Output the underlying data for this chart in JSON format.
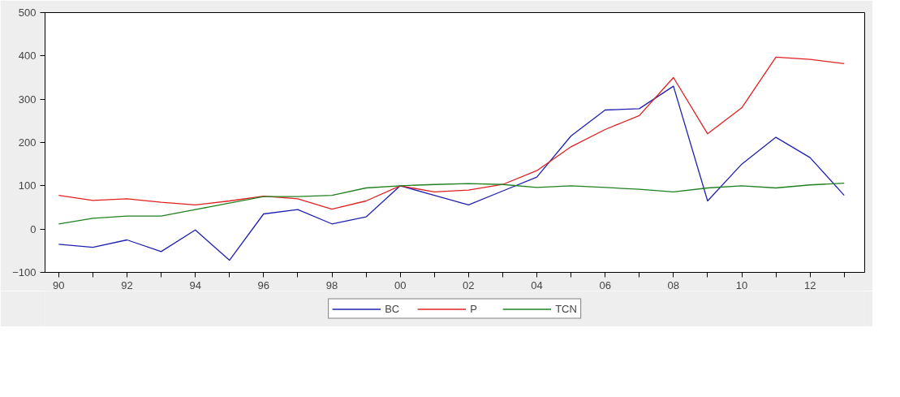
{
  "chart_data": {
    "type": "line",
    "x": [
      1990,
      1991,
      1992,
      1993,
      1994,
      1995,
      1996,
      1997,
      1998,
      1999,
      2000,
      2001,
      2002,
      2003,
      2004,
      2005,
      2006,
      2007,
      2008,
      2009,
      2010,
      2011,
      2012,
      2013
    ],
    "series": [
      {
        "name": "BC",
        "color": "#2020b0",
        "values": [
          -35,
          -42,
          -25,
          -52,
          -2,
          -72,
          35,
          45,
          12,
          28,
          100,
          78,
          56,
          88,
          120,
          215,
          275,
          278,
          330,
          65,
          150,
          212,
          165,
          78
        ]
      },
      {
        "name": "P",
        "color": "#e02020",
        "values": [
          78,
          66,
          70,
          62,
          56,
          65,
          76,
          70,
          46,
          65,
          100,
          86,
          90,
          103,
          135,
          190,
          230,
          262,
          350,
          220,
          280,
          397,
          392,
          382
        ]
      },
      {
        "name": "TCN",
        "color": "#208020",
        "values": [
          12,
          25,
          30,
          30,
          45,
          60,
          75,
          75,
          78,
          95,
          100,
          103,
          105,
          103,
          96,
          100,
          96,
          92,
          86,
          95,
          100,
          95,
          102,
          106
        ]
      }
    ],
    "xlim": [
      1989.6,
      2013.6
    ],
    "xticks": [
      {
        "value": 1990,
        "label": "90"
      },
      {
        "value": 1991,
        "label": null
      },
      {
        "value": 1992,
        "label": "92"
      },
      {
        "value": 1993,
        "label": null
      },
      {
        "value": 1994,
        "label": "94"
      },
      {
        "value": 1995,
        "label": null
      },
      {
        "value": 1996,
        "label": "96"
      },
      {
        "value": 1997,
        "label": null
      },
      {
        "value": 1998,
        "label": "98"
      },
      {
        "value": 1999,
        "label": null
      },
      {
        "value": 2000,
        "label": "00"
      },
      {
        "value": 2001,
        "label": null
      },
      {
        "value": 2002,
        "label": "02"
      },
      {
        "value": 2003,
        "label": null
      },
      {
        "value": 2004,
        "label": "04"
      },
      {
        "value": 2005,
        "label": null
      },
      {
        "value": 2006,
        "label": "06"
      },
      {
        "value": 2007,
        "label": null
      },
      {
        "value": 2008,
        "label": "08"
      },
      {
        "value": 2009,
        "label": null
      },
      {
        "value": 2010,
        "label": "10"
      },
      {
        "value": 2011,
        "label": null
      },
      {
        "value": 2012,
        "label": "12"
      },
      {
        "value": 2013,
        "label": null
      }
    ],
    "ylim": [
      -100,
      500
    ],
    "yticks": [
      -100,
      0,
      100,
      200,
      300,
      400,
      500
    ],
    "grid": false,
    "legend": "bottom",
    "marker": "none",
    "line_style": "solid"
  }
}
